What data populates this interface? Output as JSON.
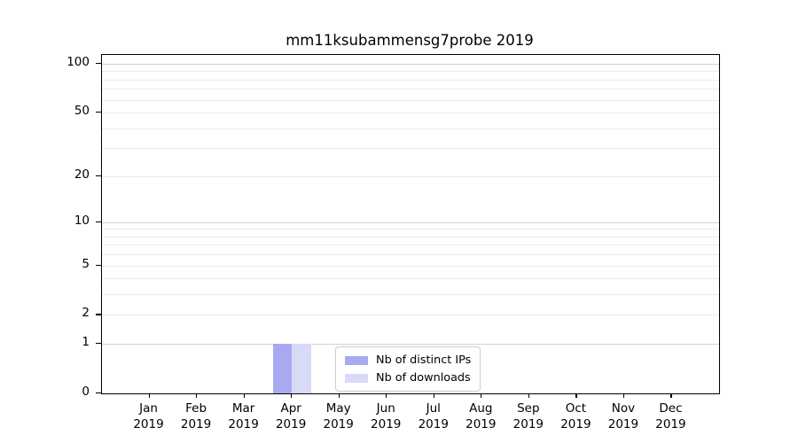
{
  "chart_data": {
    "type": "bar",
    "title": "mm11ksubammensg7probe 2019",
    "categories": [
      "Jan 2019",
      "Feb 2019",
      "Mar 2019",
      "Apr 2019",
      "May 2019",
      "Jun 2019",
      "Jul 2019",
      "Aug 2019",
      "Sep 2019",
      "Oct 2019",
      "Nov 2019",
      "Dec 2019"
    ],
    "series": [
      {
        "name": "Nb of distinct IPs",
        "color": "#a9a9f2",
        "values": [
          0,
          0,
          0,
          1,
          0,
          0,
          0,
          0,
          0,
          0,
          0,
          0
        ]
      },
      {
        "name": "Nb of downloads",
        "color": "#d9d9f8",
        "values": [
          0,
          0,
          0,
          1,
          0,
          0,
          0,
          0,
          0,
          0,
          0,
          0
        ]
      }
    ],
    "xlabel": "",
    "ylabel": "",
    "y_axis": {
      "scale": "log-like (position proportional to log10(value+1))",
      "ylim": [
        0,
        113
      ],
      "tick_values": [
        0,
        1,
        2,
        5,
        10,
        20,
        50,
        100
      ],
      "tick_labels": [
        "0",
        "1",
        "2",
        "5",
        "10",
        "20",
        "50",
        "100"
      ],
      "major_gridline_values": [
        1,
        10,
        100
      ],
      "minor_gridline_values": [
        2,
        3,
        4,
        5,
        6,
        7,
        8,
        9,
        20,
        30,
        40,
        50,
        60,
        70,
        80,
        90
      ]
    },
    "grid": "horizontal gridlines on, vertical off",
    "legend": {
      "position": "inside plot, lower center",
      "entries": [
        "Nb of distinct IPs",
        "Nb of downloads"
      ]
    }
  },
  "colors": {
    "background": "#ffffff",
    "axis": "#000000",
    "major_grid": "#d2d2d2",
    "minor_grid": "#ebebeb"
  }
}
